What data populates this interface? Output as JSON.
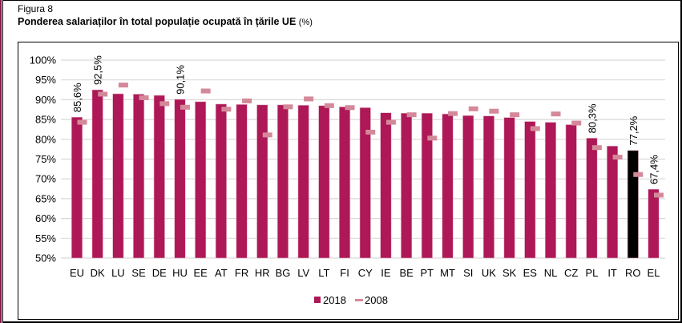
{
  "figure": {
    "label": "Figura 8",
    "title": "Ponderea salariaților în total populație ocupată în țările UE",
    "title_unit": "(%)"
  },
  "colors": {
    "series_2018": "#AE1857",
    "series_2008": "#D4899A",
    "highlight": "#000000",
    "grid": "#D9D9D9"
  },
  "chart_data": {
    "type": "bar",
    "title": "Ponderea salariaților în total populație ocupată în țările UE (%)",
    "xlabel": "",
    "ylabel": "",
    "ylim": [
      50,
      100
    ],
    "y_ticks": [
      50,
      55,
      60,
      65,
      70,
      75,
      80,
      85,
      90,
      95,
      100
    ],
    "y_tick_labels": [
      "50%",
      "55%",
      "60%",
      "65%",
      "70%",
      "75%",
      "80%",
      "85%",
      "90%",
      "95%",
      "100%"
    ],
    "grid": true,
    "legend_position": "bottom",
    "categories": [
      "EU",
      "DK",
      "LU",
      "SE",
      "DE",
      "HU",
      "EE",
      "AT",
      "FR",
      "HR",
      "BG",
      "LV",
      "LT",
      "FI",
      "CY",
      "IE",
      "BE",
      "PT",
      "MT",
      "SI",
      "UK",
      "SK",
      "ES",
      "NL",
      "CZ",
      "PL",
      "IT",
      "RO",
      "EL"
    ],
    "series": [
      {
        "name": "2018",
        "mark": "bar",
        "values": [
          85.6,
          92.5,
          91.5,
          91.4,
          91.1,
          90.1,
          89.5,
          88.9,
          88.8,
          88.7,
          88.7,
          88.6,
          88.5,
          88.2,
          88.0,
          86.7,
          86.6,
          86.6,
          86.4,
          86.0,
          85.9,
          85.5,
          84.5,
          84.3,
          83.7,
          80.3,
          78.3,
          77.2,
          67.4
        ]
      },
      {
        "name": "2008",
        "mark": "dash",
        "values": [
          84.3,
          91.4,
          93.7,
          90.5,
          89.0,
          88.1,
          92.2,
          87.6,
          89.7,
          81.1,
          88.2,
          90.2,
          88.5,
          88.0,
          81.8,
          84.3,
          86.2,
          80.3,
          86.5,
          87.7,
          87.1,
          86.2,
          82.7,
          86.4,
          84.1,
          77.9,
          75.5,
          71.1,
          65.9
        ]
      }
    ],
    "highlighted_category": "RO",
    "data_labels": [
      {
        "category": "EU",
        "text": "85,6%"
      },
      {
        "category": "DK",
        "text": "92,5%"
      },
      {
        "category": "HU",
        "text": "90,1%"
      },
      {
        "category": "PL",
        "text": "80,3%"
      },
      {
        "category": "RO",
        "text": "77,2%"
      },
      {
        "category": "EL",
        "text": "67,4%"
      }
    ],
    "legend": [
      {
        "label": "2018",
        "symbol": "square"
      },
      {
        "label": "2008",
        "symbol": "dash"
      }
    ]
  }
}
